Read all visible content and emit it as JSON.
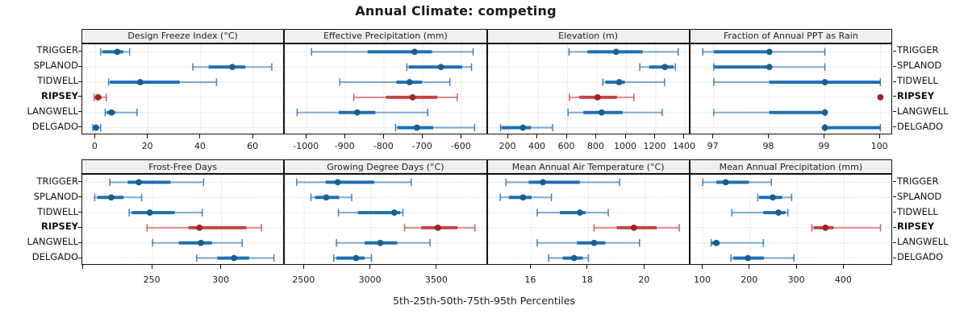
{
  "figure": {
    "title": "Annual Climate: competing",
    "caption": "5th-25th-50th-75th-95th Percentiles",
    "stations": [
      "TRIGGER",
      "SPLANOD",
      "TIDWELL",
      "RIPSEY",
      "LANGWELL",
      "DELGADO"
    ],
    "highlight_station": "RIPSEY",
    "percentile_levels": [
      5,
      25,
      50,
      75,
      95
    ],
    "colors": {
      "normal_line": "#1f6fb0",
      "normal_point": "#16608f",
      "highlight_line": "#c54542",
      "highlight_point": "#a02320",
      "strip_bg": "#f0f0f0",
      "grid": "#c9c9c9",
      "border": "#111111"
    },
    "chart_data": {
      "type": "dotplot-percentile-intervals",
      "layout": "2 rows x 4 columns, shared station rows, free x scales",
      "panels": [
        {
          "title": "Design Freeze Index (°C)",
          "xlim": [
            -5,
            72
          ],
          "ticks": [
            {
              "v": 0,
              "label": "0"
            },
            {
              "v": 20,
              "label": "20"
            },
            {
              "v": 40,
              "label": "40"
            },
            {
              "v": 60,
              "label": "60"
            }
          ],
          "stats": [
            [
              2,
              2.7,
              8.3,
              10.5,
              13
            ],
            [
              37,
              43,
              52,
              57,
              67
            ],
            [
              5,
              5.5,
              17,
              32,
              46
            ],
            [
              -0.5,
              0.2,
              1,
              2.3,
              4.1
            ],
            [
              3.7,
              4.3,
              6.1,
              7.5,
              15.8
            ],
            [
              -1,
              -0.3,
              0.2,
              0.8,
              2
            ]
          ]
        },
        {
          "title": "Effective Precipitation (mm)",
          "xlim": [
            -1056,
            -533
          ],
          "ticks": [
            {
              "v": -1000,
              "label": "-1000"
            },
            {
              "v": -900,
              "label": "-900"
            },
            {
              "v": -800,
              "label": "-800"
            },
            {
              "v": -700,
              "label": "-700"
            },
            {
              "v": -600,
              "label": "-600"
            }
          ],
          "stats": [
            [
              -987,
              -842,
              -721,
              -676,
              -570
            ],
            [
              -741,
              -736,
              -653,
              -598,
              -574
            ],
            [
              -914,
              -768,
              -734,
              -702,
              -630
            ],
            [
              -878,
              -795,
              -726,
              -662,
              -611
            ],
            [
              -1024,
              -917,
              -869,
              -822,
              -687
            ],
            [
              -770,
              -765,
              -715,
              -673,
              -566
            ]
          ]
        },
        {
          "title": "Elevation (m)",
          "xlim": [
            60,
            1437
          ],
          "ticks": [
            {
              "v": 200,
              "label": "200"
            },
            {
              "v": 400,
              "label": "400"
            },
            {
              "v": 600,
              "label": "600"
            },
            {
              "v": 800,
              "label": "800"
            },
            {
              "v": 1000,
              "label": "1000"
            },
            {
              "v": 1200,
              "label": "1200"
            },
            {
              "v": 1400,
              "label": "1400"
            }
          ],
          "stats": [
            [
              610,
              735,
              930,
              1110,
              1352
            ],
            [
              1091,
              1155,
              1261,
              1320,
              1333
            ],
            [
              840,
              858,
              951,
              990,
              1259
            ],
            [
              613,
              680,
              804,
              936,
              1051
            ],
            [
              604,
              708,
              832,
              973,
              1243
            ],
            [
              145,
              151,
              297,
              352,
              498
            ]
          ]
        },
        {
          "title": "Fraction of Annual PPT as Rain",
          "xlim": [
            96.58,
            100.23
          ],
          "ticks": [
            {
              "v": 97,
              "label": "97"
            },
            {
              "v": 98,
              "label": "98"
            },
            {
              "v": 99,
              "label": "99"
            },
            {
              "v": 100,
              "label": "100"
            }
          ],
          "stats": [
            [
              96.8,
              97,
              98,
              98,
              99
            ],
            [
              97,
              97,
              98,
              98,
              99
            ],
            [
              97,
              98,
              99,
              100,
              100
            ],
            [
              100,
              100,
              100,
              100,
              100
            ],
            [
              97,
              98,
              99,
              99,
              99
            ],
            [
              99,
              99,
              99,
              100,
              100
            ]
          ]
        },
        {
          "title": "Frost-Free Days",
          "xlim": [
            199,
            346
          ],
          "ticks": [
            {
              "v": 200,
              "label": ""
            },
            {
              "v": 250,
              "label": "250"
            },
            {
              "v": 300,
              "label": "300"
            }
          ],
          "stats": [
            [
              219,
              232,
              240,
              263,
              287
            ],
            [
              208,
              210,
              220,
              229,
              242
            ],
            [
              233,
              235,
              248,
              266,
              286
            ],
            [
              246,
              276,
              284,
              318,
              329
            ],
            [
              250,
              269,
              285,
              293,
              315
            ],
            [
              282,
              297,
              309,
              320,
              338
            ]
          ]
        },
        {
          "title": "Growing Degree Days (°C)",
          "xlim": [
            2354,
            3880
          ],
          "ticks": [
            {
              "v": 2500,
              "label": "2500"
            },
            {
              "v": 3000,
              "label": "3000"
            },
            {
              "v": 3500,
              "label": "3500"
            }
          ],
          "stats": [
            [
              2444,
              2662,
              2753,
              3027,
              3306
            ],
            [
              2551,
              2581,
              2666,
              2764,
              2858
            ],
            [
              2758,
              2905,
              3179,
              3223,
              3244
            ],
            [
              3256,
              3381,
              3507,
              3654,
              3786
            ],
            [
              2743,
              2956,
              3073,
              3201,
              3448
            ],
            [
              2723,
              2743,
              2891,
              2956,
              3007
            ]
          ]
        },
        {
          "title": "Mean Annual Air Temperature (°C)",
          "xlim": [
            14.47,
            21.6
          ],
          "ticks": [
            {
              "v": 16,
              "label": "16"
            },
            {
              "v": 18,
              "label": "18"
            },
            {
              "v": 20,
              "label": "20"
            }
          ],
          "stats": [
            [
              15.1,
              15.9,
              16.4,
              17.7,
              19.1
            ],
            [
              14.9,
              15.2,
              15.7,
              16.0,
              16.7
            ],
            [
              16.2,
              17.0,
              17.7,
              17.9,
              18.7
            ],
            [
              18.2,
              19.0,
              19.6,
              20.4,
              21.2
            ],
            [
              16.2,
              17.6,
              18.2,
              18.6,
              19.8
            ],
            [
              16.6,
              17.1,
              17.5,
              17.8,
              18.0
            ]
          ]
        },
        {
          "title": "Mean Annual Precipitation (mm)",
          "xlim": [
            73,
            504
          ],
          "ticks": [
            {
              "v": 100,
              "label": "100"
            },
            {
              "v": 200,
              "label": "200"
            },
            {
              "v": 300,
              "label": "300"
            },
            {
              "v": 400,
              "label": "400"
            }
          ],
          "stats": [
            [
              99,
              128,
              148,
              197,
              245
            ],
            [
              216,
              219,
              248,
              268,
              288
            ],
            [
              161,
              228,
              260,
              275,
              280
            ],
            [
              331,
              335,
              360,
              377,
              477
            ],
            [
              117,
              118,
              128,
              135,
              228
            ],
            [
              159,
              164,
              195,
              229,
              293
            ]
          ]
        }
      ]
    }
  }
}
